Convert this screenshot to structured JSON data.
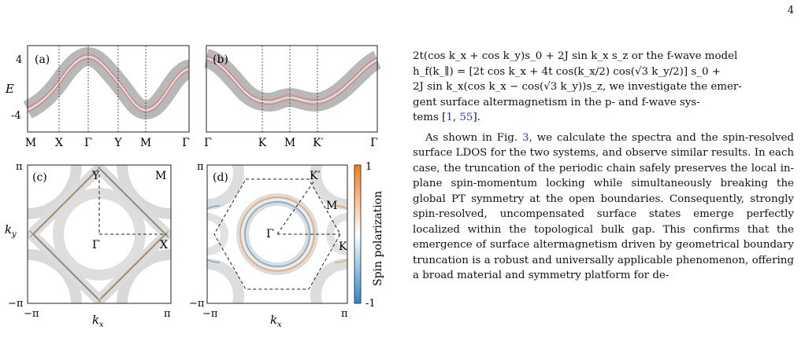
{
  "page_number": "4",
  "figure": {
    "panel_labels": [
      "(a)",
      "(b)",
      "(c)",
      "(d)"
    ],
    "panel_a": {
      "ylabel": "E",
      "yticks": [
        "4",
        "-4"
      ],
      "xticks": [
        "M",
        "X",
        "Γ",
        "Y",
        "M",
        "Γ"
      ]
    },
    "panel_b": {
      "xticks": [
        "Γ",
        "K",
        "M",
        "K′",
        "Γ"
      ]
    },
    "panel_c": {
      "xlabel": "k",
      "xlabel_sub": "x",
      "ylabel": "k",
      "ylabel_sub": "y",
      "xticks": [
        "−π",
        "π"
      ],
      "yticks": [
        "π",
        "−π"
      ],
      "points": [
        "Y",
        "M",
        "Γ",
        "X"
      ]
    },
    "panel_d": {
      "xlabel": "k",
      "xlabel_sub": "x",
      "xticks": [
        "−π",
        "π"
      ],
      "yticks": [
        "π",
        "−π"
      ],
      "points": [
        "K′",
        "M",
        "Γ",
        "K"
      ]
    },
    "colorbar": {
      "label": "Spin polarization",
      "max": "1",
      "min": "-1",
      "colors": [
        "#2a86c8",
        "#ffffff",
        "#f07d16"
      ]
    },
    "colors": {
      "band_fill": "#b8b8b8",
      "band_line": "#e8787a",
      "blue": "#3a8fd0",
      "orange": "#f08a24"
    }
  },
  "text": {
    "line1": "2t(cos k_x + cos k_y)s_0 + 2J sin k_x s_z or the f-wave model",
    "line2": "h_f(k_∥) = [2t cos k_x + 4t cos(k_x/2) cos(√3 k_y/2)] s_0 +",
    "line3": "2J sin k_x(cos k_x − cos(√3 k_y))s_z, we investigate the emer-",
    "line4": "gent surface altermagnetism in the p- and f-wave sys-",
    "line5_pre": "tems [",
    "ref1": "1",
    "ref_sep": ", ",
    "ref2": "55",
    "line5_post": "].",
    "para2_pre": "As shown in Fig. ",
    "fig_ref": "3",
    "para2_post": ", we calculate the spectra and the spin-resolved surface LDOS for the two systems, and observe similar results. In each case, the truncation of the periodic chain safely preserves the local in-plane spin-momentum locking while simultaneously breaking the global PT symmetry at the open boundaries. Consequently, strongly spin-resolved, uncompensated surface states emerge perfectly localized within the topological bulk gap. This confirms that the emergence of surface altermagnetism driven by geometrical boundary truncation is a robust and universally applicable phenomenon, offering a broad material and symmetry platform for de-"
  }
}
